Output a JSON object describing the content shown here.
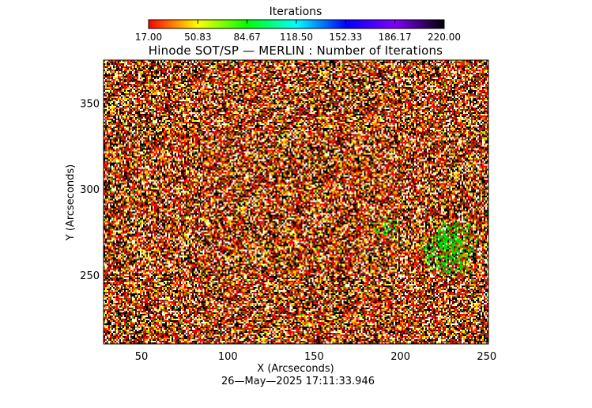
{
  "chart_data": {
    "type": "heatmap",
    "title": "Hinode SOT/SP — MERLIN : Number of Iterations",
    "xlabel": "X (Arcseconds)",
    "ylabel": "Y (Arcseconds)",
    "xlim": [
      28,
      251
    ],
    "ylim": [
      210,
      375
    ],
    "x_ticks": [
      "50",
      "100",
      "150",
      "200",
      "250"
    ],
    "y_ticks": [
      "250",
      "300",
      "350"
    ],
    "colorbar": {
      "title": "Iterations",
      "range": [
        17.0,
        220.0
      ],
      "tick_labels": [
        "17.00",
        "50.83",
        "84.67",
        "118.50",
        "152.33",
        "186.17",
        "220.00"
      ],
      "palette": [
        "#ff0000",
        "#ffff00",
        "#00ff00",
        "#00ffff",
        "#0000ff",
        "#7f00ff",
        "#000000"
      ]
    },
    "pattern": "noisy speckle map dominated by black, red, white and yellow pixels, with green clusters concentrated near the right edge around X≈230–250, Y≈255–285",
    "timestamp": "26—May—2025 17:11:33.946"
  }
}
